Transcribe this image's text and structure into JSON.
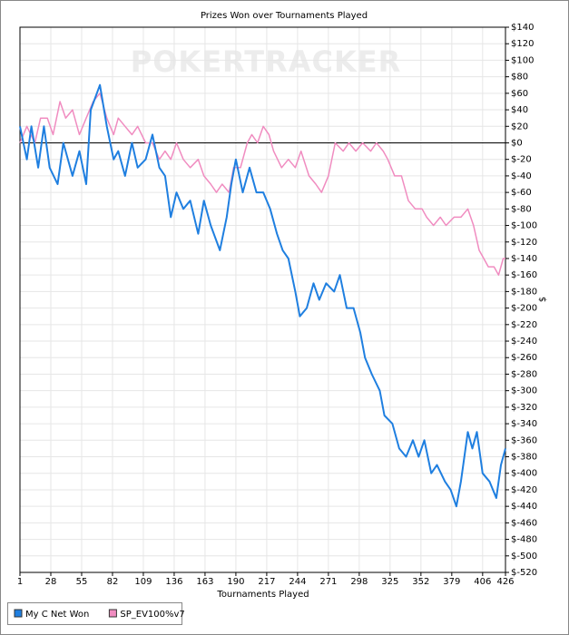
{
  "chart_data": {
    "type": "line",
    "title": "Prizes Won over Tournaments Played",
    "watermark": "POKERTRACKER",
    "x_label": "Tournaments Played",
    "y_label": "$",
    "xlim": [
      1,
      426
    ],
    "xticks": [
      1,
      28,
      55,
      82,
      109,
      136,
      163,
      190,
      217,
      244,
      271,
      298,
      325,
      352,
      379,
      406,
      426
    ],
    "ylim": [
      -520,
      140
    ],
    "yticks": [
      {
        "value": 140,
        "label": "$140"
      },
      {
        "value": 120,
        "label": "$120"
      },
      {
        "value": 100,
        "label": "$100"
      },
      {
        "value": 80,
        "label": "$80"
      },
      {
        "value": 60,
        "label": "$60"
      },
      {
        "value": 40,
        "label": "$40"
      },
      {
        "value": 20,
        "label": "$20"
      },
      {
        "value": 0,
        "label": "$0"
      },
      {
        "value": -20,
        "label": "$-20"
      },
      {
        "value": -40,
        "label": "$-40"
      },
      {
        "value": -60,
        "label": "$-60"
      },
      {
        "value": -80,
        "label": "$-80"
      },
      {
        "value": -100,
        "label": "$-100"
      },
      {
        "value": -120,
        "label": "$-120"
      },
      {
        "value": -140,
        "label": "$-140"
      },
      {
        "value": -160,
        "label": "$-160"
      },
      {
        "value": -180,
        "label": "$-180"
      },
      {
        "value": -200,
        "label": "$-200"
      },
      {
        "value": -220,
        "label": "$-220"
      },
      {
        "value": -240,
        "label": "$-240"
      },
      {
        "value": -260,
        "label": "$-260"
      },
      {
        "value": -280,
        "label": "$-280"
      },
      {
        "value": -300,
        "label": "$-300"
      },
      {
        "value": -320,
        "label": "$-320"
      },
      {
        "value": -340,
        "label": "$-340"
      },
      {
        "value": -360,
        "label": "$-360"
      },
      {
        "value": -380,
        "label": "$-380"
      },
      {
        "value": -400,
        "label": "$-400"
      },
      {
        "value": -420,
        "label": "$-420"
      },
      {
        "value": -440,
        "label": "$-440"
      },
      {
        "value": -460,
        "label": "$-460"
      },
      {
        "value": -480,
        "label": "$-480"
      },
      {
        "value": -500,
        "label": "$-500"
      },
      {
        "value": -520,
        "label": "$-520"
      }
    ],
    "grid": true,
    "legend": "bottom-left",
    "series": [
      {
        "name": "My C Net Won",
        "color": "#1f7fe0",
        "x": [
          1,
          7,
          11,
          17,
          22,
          27,
          34,
          39,
          47,
          53,
          59,
          63,
          71,
          77,
          83,
          87,
          93,
          99,
          104,
          111,
          117,
          123,
          128,
          133,
          138,
          144,
          150,
          157,
          162,
          168,
          176,
          182,
          186,
          190,
          196,
          202,
          208,
          214,
          220,
          226,
          231,
          236,
          242,
          246,
          252,
          258,
          263,
          269,
          276,
          281,
          287,
          293,
          299,
          303,
          309,
          316,
          320,
          327,
          333,
          339,
          345,
          350,
          355,
          361,
          366,
          373,
          378,
          383,
          387,
          393,
          397,
          401,
          406,
          412,
          418,
          422,
          426
        ],
        "values": [
          20,
          -20,
          20,
          -30,
          20,
          -30,
          -50,
          0,
          -40,
          -10,
          -50,
          40,
          70,
          20,
          -20,
          -10,
          -40,
          0,
          -30,
          -20,
          10,
          -30,
          -40,
          -90,
          -60,
          -80,
          -70,
          -110,
          -70,
          -100,
          -130,
          -90,
          -50,
          -20,
          -60,
          -30,
          -60,
          -60,
          -80,
          -110,
          -130,
          -140,
          -180,
          -210,
          -200,
          -170,
          -190,
          -170,
          -180,
          -160,
          -200,
          -200,
          -230,
          -260,
          -280,
          -300,
          -330,
          -340,
          -370,
          -380,
          -360,
          -380,
          -360,
          -400,
          -390,
          -410,
          -420,
          -440,
          -410,
          -350,
          -370,
          -350,
          -400,
          -410,
          -430,
          -390,
          -370
        ]
      },
      {
        "name": "SP_EV100%v7",
        "color": "#f08cc0",
        "x": [
          1,
          7,
          14,
          19,
          25,
          30,
          36,
          41,
          47,
          53,
          59,
          65,
          71,
          77,
          83,
          87,
          93,
          99,
          104,
          111,
          117,
          123,
          128,
          133,
          138,
          144,
          150,
          157,
          162,
          168,
          173,
          178,
          184,
          188,
          194,
          200,
          204,
          209,
          214,
          219,
          223,
          230,
          236,
          242,
          247,
          254,
          260,
          265,
          271,
          277,
          284,
          289,
          295,
          301,
          308,
          313,
          319,
          323,
          329,
          335,
          341,
          347,
          353,
          357,
          363,
          369,
          374,
          381,
          387,
          393,
          398,
          403,
          407,
          411,
          416,
          420,
          424,
          426
        ],
        "values": [
          0,
          20,
          0,
          30,
          30,
          10,
          50,
          30,
          40,
          10,
          30,
          50,
          60,
          30,
          10,
          30,
          20,
          10,
          20,
          0,
          0,
          -20,
          -10,
          -20,
          0,
          -20,
          -30,
          -20,
          -40,
          -50,
          -60,
          -50,
          -60,
          -30,
          -30,
          0,
          10,
          0,
          20,
          10,
          -10,
          -30,
          -20,
          -30,
          -10,
          -40,
          -50,
          -60,
          -40,
          0,
          -10,
          0,
          -10,
          0,
          -10,
          0,
          -10,
          -20,
          -40,
          -40,
          -70,
          -80,
          -80,
          -90,
          -100,
          -90,
          -100,
          -90,
          -90,
          -80,
          -100,
          -130,
          -140,
          -150,
          -150,
          -160,
          -140,
          -140
        ]
      }
    ]
  }
}
